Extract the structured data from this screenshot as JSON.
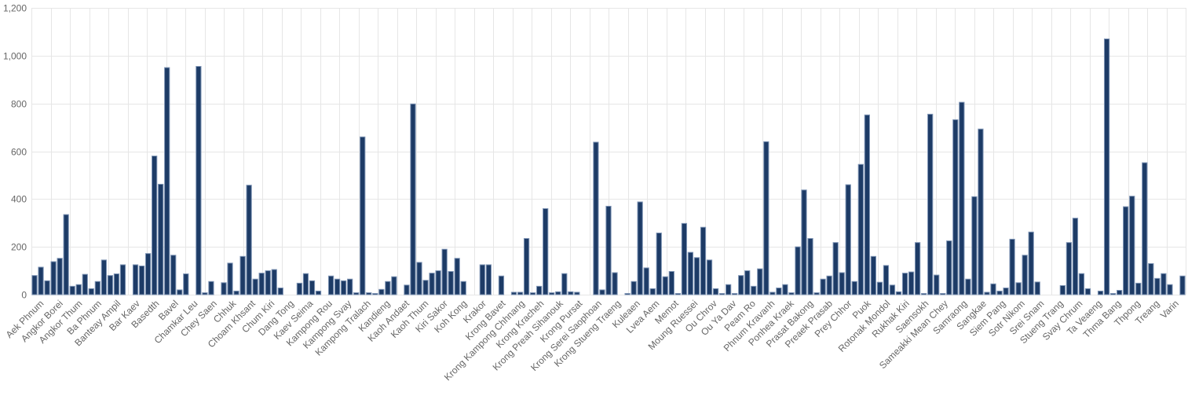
{
  "chart_data": {
    "type": "bar",
    "title": "",
    "xlabel": "",
    "ylabel": "",
    "ylim": [
      0,
      1200
    ],
    "yticks": [
      0,
      200,
      400,
      600,
      800,
      1000,
      1200
    ],
    "ytick_labels": [
      "0",
      "200",
      "400",
      "600",
      "800",
      "1,000",
      "1,200"
    ],
    "grid": true,
    "legend": "none",
    "colors": {
      "bar_fill": "#1d3b66",
      "bar_edge": "#7f95b5",
      "grid": "#e6e6e6",
      "tick_text": "#666666"
    },
    "x_tick_labels": [
      "Aek Phnum",
      "Angkor Borei",
      "Angkor Thum",
      "Ba Phnum",
      "Banteay Ampil",
      "Bar Kaev",
      "Basedth",
      "Bavel",
      "Chamkar Leu",
      "Chey Saen",
      "Chhuk",
      "Choam Khsant",
      "Chum Kiri",
      "Dang Tong",
      "Kaev Seima",
      "Kampong Rou",
      "Kampong Svay",
      "Kampong Tralach",
      "Kandieng",
      "Kaoh Andaet",
      "Kaoh Thum",
      "Kiri Sakor",
      "Koh Kong",
      "Krakor",
      "Krong Bavet",
      "Krong Kampong Chhnang",
      "Krong Kracheh",
      "Krong Preah Sihanouk",
      "Krong Pursat",
      "Krong Serei Saophoan",
      "Krong Stueng Traeng",
      "Kuleaen",
      "Lvea Aem",
      "Memot",
      "Moung Ruessei",
      "Ou Chrov",
      "Ou Ya Dav",
      "Peam Ro",
      "Phnum Kravanh",
      "Ponhea Kraek",
      "Prasat Bakong",
      "Preaek Prasab",
      "Prey Chhor",
      "Puok",
      "Rotonak Mondol",
      "Rukhak Kiri",
      "Saensokh",
      "Sameakki Mean Chey",
      "Samraong",
      "Sangkae",
      "Siem Pang",
      "Sotr Nikom",
      "Srei Snam",
      "Stueng Trang",
      "Svay Chrum",
      "Ta Veaeng",
      "Thma Bang",
      "Thpong",
      "Treang",
      "Varin"
    ],
    "values": [
      80,
      115,
      58,
      138,
      152,
      335,
      35,
      42,
      85,
      25,
      55,
      145,
      80,
      87,
      125,
      0,
      125,
      120,
      172,
      580,
      462,
      950,
      165,
      20,
      87,
      0,
      955,
      8,
      55,
      0,
      50,
      132,
      15,
      160,
      458,
      65,
      90,
      100,
      105,
      28,
      0,
      0,
      48,
      88,
      58,
      15,
      0,
      78,
      65,
      58,
      65,
      8,
      660,
      8,
      5,
      22,
      55,
      75,
      0,
      40,
      798,
      135,
      60,
      90,
      100,
      190,
      97,
      152,
      55,
      0,
      0,
      125,
      125,
      0,
      78,
      0,
      10,
      10,
      235,
      8,
      35,
      360,
      8,
      12,
      88,
      12,
      10,
      0,
      0,
      638,
      20,
      370,
      92,
      0,
      5,
      55,
      388,
      112,
      25,
      258,
      75,
      97,
      5,
      298,
      177,
      155,
      282,
      145,
      25,
      5,
      42,
      5,
      80,
      100,
      35,
      108,
      640,
      10,
      28,
      42,
      8,
      200,
      438,
      235,
      8,
      65,
      78,
      218,
      92,
      460,
      55,
      545,
      752,
      160,
      52,
      122,
      40,
      12,
      90,
      95,
      218,
      5,
      755,
      82,
      5,
      225,
      732,
      805,
      65,
      410,
      693,
      10,
      45,
      15,
      28,
      232,
      50,
      165,
      262,
      53,
      0,
      0,
      0,
      38,
      218,
      320,
      88,
      25,
      0,
      15,
      1070,
      5,
      18,
      368,
      412,
      48,
      552,
      130,
      68,
      88,
      42,
      0,
      78
    ]
  }
}
